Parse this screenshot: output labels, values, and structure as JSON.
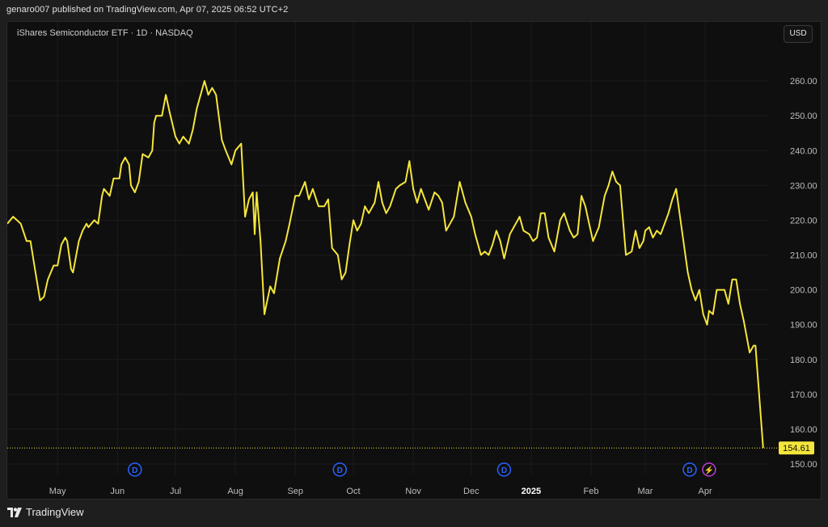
{
  "header": {
    "published": "genaro007 published on TradingView.com, Apr 07, 2025 06:52 UTC+2"
  },
  "chart": {
    "symbol": "iShares Semiconductor ETF · 1D · NASDAQ",
    "currency": "USD",
    "last_price": "154.61"
  },
  "footer": {
    "brand": "TradingView"
  },
  "colors": {
    "line": "#f5e63b",
    "background": "#0f0f0f",
    "grid": "#1c1c1c",
    "axis_text": "#bdbdbd",
    "price_badge": "#f5e63b",
    "dividend_marker": "#2962ff",
    "event_marker": "#ba3fd8"
  },
  "chart_data": {
    "type": "line",
    "title": "",
    "xlabel": "",
    "ylabel": "",
    "y_ticks": [
      150,
      160,
      170,
      180,
      190,
      200,
      210,
      220,
      230,
      240,
      250,
      260
    ],
    "y_tick_labels": [
      "150.00",
      "160.00",
      "170.00",
      "180.00",
      "190.00",
      "200.00",
      "210.00",
      "220.00",
      "230.00",
      "240.00",
      "250.00",
      "260.00"
    ],
    "ylim": [
      147,
      270
    ],
    "x_tick_labels": [
      {
        "label": "May",
        "date": "2024-05-01"
      },
      {
        "label": "Jun",
        "date": "2024-06-01"
      },
      {
        "label": "Jul",
        "date": "2024-07-01"
      },
      {
        "label": "Aug",
        "date": "2024-08-01"
      },
      {
        "label": "Sep",
        "date": "2024-09-01"
      },
      {
        "label": "Oct",
        "date": "2024-10-01"
      },
      {
        "label": "Nov",
        "date": "2024-11-01"
      },
      {
        "label": "Dec",
        "date": "2024-12-01"
      },
      {
        "label": "2025",
        "date": "2025-01-01",
        "bold": true
      },
      {
        "label": "Feb",
        "date": "2025-02-01"
      },
      {
        "label": "Mar",
        "date": "2025-03-01"
      },
      {
        "label": "Apr",
        "date": "2025-04-01"
      }
    ],
    "xlim": [
      "2024-04-05",
      "2025-05-04"
    ],
    "grid": true,
    "markers": [
      {
        "symbol": "D",
        "date": "2024-06-10",
        "kind": "dividend"
      },
      {
        "symbol": "D",
        "date": "2024-09-24",
        "kind": "dividend"
      },
      {
        "symbol": "D",
        "date": "2024-12-18",
        "kind": "dividend"
      },
      {
        "symbol": "D",
        "date": "2025-03-24",
        "kind": "dividend"
      },
      {
        "symbol": "⚡",
        "date": "2025-04-03",
        "kind": "event"
      }
    ],
    "series": [
      {
        "points": [
          [
            "2024-04-05",
            219
          ],
          [
            "2024-04-08",
            221
          ],
          [
            "2024-04-10",
            220
          ],
          [
            "2024-04-12",
            219
          ],
          [
            "2024-04-15",
            214
          ],
          [
            "2024-04-17",
            214
          ],
          [
            "2024-04-19",
            207
          ],
          [
            "2024-04-22",
            197
          ],
          [
            "2024-04-24",
            198
          ],
          [
            "2024-04-26",
            203
          ],
          [
            "2024-04-29",
            207
          ],
          [
            "2024-05-01",
            207
          ],
          [
            "2024-05-03",
            213
          ],
          [
            "2024-05-05",
            215
          ],
          [
            "2024-05-06",
            214
          ],
          [
            "2024-05-08",
            206
          ],
          [
            "2024-05-09",
            205
          ],
          [
            "2024-05-12",
            214
          ],
          [
            "2024-05-14",
            217
          ],
          [
            "2024-05-16",
            219
          ],
          [
            "2024-05-17",
            218
          ],
          [
            "2024-05-20",
            220
          ],
          [
            "2024-05-22",
            219
          ],
          [
            "2024-05-24",
            227
          ],
          [
            "2024-05-25",
            229
          ],
          [
            "2024-05-28",
            227
          ],
          [
            "2024-05-30",
            232
          ],
          [
            "2024-06-02",
            232
          ],
          [
            "2024-06-03",
            236
          ],
          [
            "2024-06-05",
            238
          ],
          [
            "2024-06-07",
            236
          ],
          [
            "2024-06-08",
            230
          ],
          [
            "2024-06-10",
            228
          ],
          [
            "2024-06-12",
            231
          ],
          [
            "2024-06-14",
            239
          ],
          [
            "2024-06-17",
            238
          ],
          [
            "2024-06-19",
            240
          ],
          [
            "2024-06-20",
            248
          ],
          [
            "2024-06-21",
            250
          ],
          [
            "2024-06-24",
            250
          ],
          [
            "2024-06-26",
            256
          ],
          [
            "2024-06-28",
            251
          ],
          [
            "2024-07-01",
            244
          ],
          [
            "2024-07-03",
            242
          ],
          [
            "2024-07-05",
            244
          ],
          [
            "2024-07-08",
            242
          ],
          [
            "2024-07-10",
            246
          ],
          [
            "2024-07-12",
            252
          ],
          [
            "2024-07-16",
            260
          ],
          [
            "2024-07-17",
            258
          ],
          [
            "2024-07-18",
            256
          ],
          [
            "2024-07-20",
            258
          ],
          [
            "2024-07-22",
            256
          ],
          [
            "2024-07-25",
            243
          ],
          [
            "2024-07-27",
            240
          ],
          [
            "2024-07-30",
            236
          ],
          [
            "2024-08-01",
            240
          ],
          [
            "2024-08-04",
            242
          ],
          [
            "2024-08-06",
            221
          ],
          [
            "2024-08-08",
            226
          ],
          [
            "2024-08-10",
            228
          ],
          [
            "2024-08-11",
            216
          ],
          [
            "2024-08-12",
            228
          ],
          [
            "2024-08-14",
            214
          ],
          [
            "2024-08-16",
            193
          ],
          [
            "2024-08-19",
            201
          ],
          [
            "2024-08-21",
            199
          ],
          [
            "2024-08-24",
            209
          ],
          [
            "2024-08-27",
            214
          ],
          [
            "2024-08-29",
            219
          ],
          [
            "2024-09-01",
            227
          ],
          [
            "2024-09-03",
            227
          ],
          [
            "2024-09-06",
            231
          ],
          [
            "2024-09-08",
            226
          ],
          [
            "2024-09-10",
            229
          ],
          [
            "2024-09-13",
            224
          ],
          [
            "2024-09-16",
            224
          ],
          [
            "2024-09-18",
            226
          ],
          [
            "2024-09-20",
            212
          ],
          [
            "2024-09-23",
            210
          ],
          [
            "2024-09-25",
            203
          ],
          [
            "2024-09-27",
            205
          ],
          [
            "2024-09-29",
            213
          ],
          [
            "2024-10-01",
            220
          ],
          [
            "2024-10-03",
            217
          ],
          [
            "2024-10-05",
            219
          ],
          [
            "2024-10-07",
            224
          ],
          [
            "2024-10-09",
            222
          ],
          [
            "2024-10-12",
            225
          ],
          [
            "2024-10-14",
            231
          ],
          [
            "2024-10-16",
            225
          ],
          [
            "2024-10-18",
            222
          ],
          [
            "2024-10-20",
            224
          ],
          [
            "2024-10-23",
            229
          ],
          [
            "2024-10-25",
            230
          ],
          [
            "2024-10-28",
            231
          ],
          [
            "2024-10-30",
            237
          ],
          [
            "2024-11-01",
            229
          ],
          [
            "2024-11-03",
            225
          ],
          [
            "2024-11-05",
            229
          ],
          [
            "2024-11-07",
            226
          ],
          [
            "2024-11-09",
            223
          ],
          [
            "2024-11-12",
            228
          ],
          [
            "2024-11-14",
            227
          ],
          [
            "2024-11-16",
            225
          ],
          [
            "2024-11-18",
            217
          ],
          [
            "2024-11-20",
            219
          ],
          [
            "2024-11-22",
            221
          ],
          [
            "2024-11-25",
            231
          ],
          [
            "2024-11-28",
            225
          ],
          [
            "2024-12-01",
            221
          ],
          [
            "2024-12-03",
            216
          ],
          [
            "2024-12-04",
            214
          ],
          [
            "2024-12-06",
            210
          ],
          [
            "2024-12-08",
            211
          ],
          [
            "2024-12-10",
            210
          ],
          [
            "2024-12-12",
            213
          ],
          [
            "2024-12-14",
            217
          ],
          [
            "2024-12-16",
            214
          ],
          [
            "2024-12-18",
            209
          ],
          [
            "2024-12-21",
            216
          ],
          [
            "2024-12-24",
            219
          ],
          [
            "2024-12-26",
            221
          ],
          [
            "2024-12-28",
            217
          ],
          [
            "2024-12-31",
            216
          ],
          [
            "2025-01-02",
            214
          ],
          [
            "2025-01-04",
            215
          ],
          [
            "2025-01-06",
            222
          ],
          [
            "2025-01-08",
            222
          ],
          [
            "2025-01-10",
            215
          ],
          [
            "2025-01-13",
            211
          ],
          [
            "2025-01-16",
            220
          ],
          [
            "2025-01-18",
            222
          ],
          [
            "2025-01-21",
            217
          ],
          [
            "2025-01-23",
            215
          ],
          [
            "2025-01-25",
            216
          ],
          [
            "2025-01-27",
            227
          ],
          [
            "2025-01-29",
            224
          ],
          [
            "2025-01-31",
            219
          ],
          [
            "2025-02-02",
            214
          ],
          [
            "2025-02-05",
            218
          ],
          [
            "2025-02-08",
            227
          ],
          [
            "2025-02-10",
            230
          ],
          [
            "2025-02-12",
            234
          ],
          [
            "2025-02-14",
            231
          ],
          [
            "2025-02-16",
            230
          ],
          [
            "2025-02-19",
            210
          ],
          [
            "2025-02-22",
            211
          ],
          [
            "2025-02-24",
            217
          ],
          [
            "2025-02-26",
            212
          ],
          [
            "2025-02-28",
            214
          ],
          [
            "2025-03-01",
            217
          ],
          [
            "2025-03-03",
            218
          ],
          [
            "2025-03-05",
            215
          ],
          [
            "2025-03-07",
            217
          ],
          [
            "2025-03-09",
            216
          ],
          [
            "2025-03-11",
            219
          ],
          [
            "2025-03-13",
            222
          ],
          [
            "2025-03-15",
            226
          ],
          [
            "2025-03-17",
            229
          ],
          [
            "2025-03-19",
            221
          ],
          [
            "2025-03-21",
            213
          ],
          [
            "2025-03-23",
            205
          ],
          [
            "2025-03-25",
            200
          ],
          [
            "2025-03-27",
            197
          ],
          [
            "2025-03-29",
            200
          ],
          [
            "2025-03-31",
            193
          ],
          [
            "2025-04-02",
            190
          ],
          [
            "2025-04-03",
            194
          ],
          [
            "2025-04-05",
            193
          ],
          [
            "2025-04-07",
            200
          ],
          [
            "2025-04-09",
            200
          ],
          [
            "2025-04-11",
            200
          ],
          [
            "2025-04-13",
            196
          ],
          [
            "2025-04-15",
            203
          ],
          [
            "2025-04-17",
            203
          ],
          [
            "2025-04-19",
            196
          ],
          [
            "2025-04-21",
            191
          ],
          [
            "2025-04-22",
            188
          ],
          [
            "2025-04-24",
            182
          ],
          [
            "2025-04-26",
            184
          ],
          [
            "2025-04-27",
            184
          ],
          [
            "2025-05-01",
            154.61
          ]
        ]
      }
    ]
  }
}
